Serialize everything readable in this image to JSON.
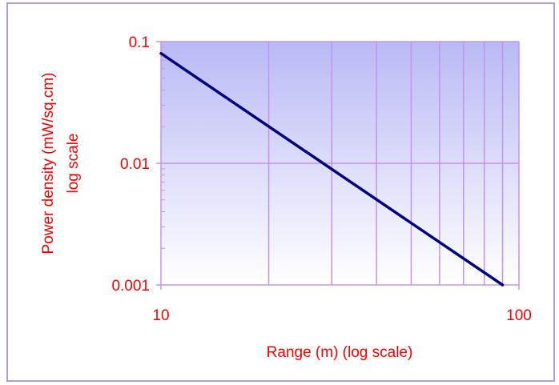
{
  "chart_data": {
    "type": "line",
    "title": "",
    "xlabel": "Range (m) (log scale)",
    "ylabel_lines": [
      "Power density (mW/sq.cm)",
      "log scale"
    ],
    "x_scale": "log",
    "y_scale": "log",
    "xlim": [
      10,
      100
    ],
    "ylim": [
      0.001,
      0.1
    ],
    "x_ticks": [
      {
        "value": 10,
        "label": "10"
      },
      {
        "value": 100,
        "label": "100"
      }
    ],
    "y_ticks": [
      {
        "value": 0.1,
        "label": "0.1"
      },
      {
        "value": 0.01,
        "label": "0.01"
      },
      {
        "value": 0.001,
        "label": "0.001"
      }
    ],
    "x_gridlines": [
      20,
      30,
      40,
      50,
      60,
      70,
      80,
      90
    ],
    "y_gridlines": [
      0.1,
      0.01
    ],
    "grid": true,
    "series": [
      {
        "color": "#000080",
        "x": [
          10,
          90
        ],
        "y": [
          0.08,
          0.001
        ]
      }
    ],
    "colors": {
      "plot_gradient_top": "#b9b9f5",
      "plot_gradient_bottom": "#ffffff",
      "gridline": "#c493ee",
      "frame": "#b39ae6",
      "text": "#ff0000"
    }
  }
}
